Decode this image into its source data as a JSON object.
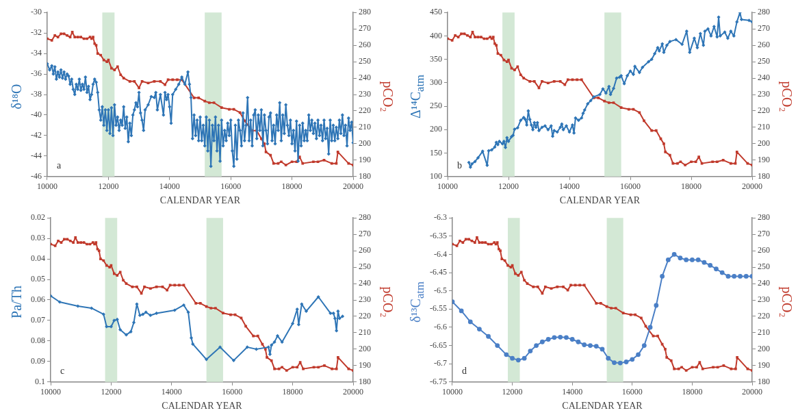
{
  "chart_data": [
    {
      "type": "line",
      "xlabel": "CALENDAR YEAR",
      "ylabel": "δ¹⁸O",
      "y2label": "pCO₂",
      "xlim": [
        10000,
        20000
      ],
      "xticks": [
        10000,
        12000,
        14000,
        16000,
        18000,
        20000
      ],
      "ylim": [
        -46,
        -30
      ],
      "yticks": [
        -46,
        -44,
        -42,
        -40,
        -38,
        -36,
        -34,
        -32,
        -30
      ],
      "y2lim": [
        180,
        280
      ],
      "y2ticks": [
        180,
        190,
        200,
        210,
        220,
        230,
        240,
        250,
        260,
        270,
        280
      ],
      "grid": false,
      "legend": false,
      "annotations": [
        "a"
      ],
      "bands": [
        {
          "axis": "x",
          "from": 11800,
          "to": 12200,
          "color": "#d3e8d5"
        },
        {
          "axis": "x",
          "from": 15150,
          "to": 15700,
          "color": "#d3e8d5"
        }
      ],
      "series": [
        {
          "type": "line",
          "color": "#2e75b6",
          "marker": "diamond",
          "x": [
            10000,
            10080,
            10150,
            10200,
            10250,
            10300,
            10350,
            10400,
            10450,
            10500,
            10550,
            10600,
            10650,
            10700,
            10750,
            10800,
            10850,
            10900,
            10950,
            11000,
            11050,
            11100,
            11150,
            11200,
            11250,
            11300,
            11350,
            11400,
            11450,
            11500,
            11550,
            11600,
            11650,
            11700,
            11750,
            11800,
            11850,
            11900,
            11950,
            12000,
            12050,
            12100,
            12150,
            12200,
            12250,
            12300,
            12350,
            12400,
            12450,
            12500,
            12550,
            12600,
            12650,
            12700,
            12750,
            12800,
            12850,
            12900,
            12950,
            13000,
            13050,
            13100,
            13150,
            13200,
            13300,
            13400,
            13500,
            13550,
            13600,
            13700,
            13800,
            13850,
            13900,
            13950,
            14000,
            14050,
            14100,
            14200,
            14300,
            14400,
            14500,
            14600,
            14650,
            14700,
            14750,
            14800,
            14850,
            14900,
            14950,
            15000,
            15050,
            15100,
            15150,
            15200,
            15250,
            15300,
            15350,
            15400,
            15450,
            15500,
            15550,
            15600,
            15650,
            15700,
            15750,
            15800,
            15850,
            15900,
            15950,
            16000,
            16050,
            16100,
            16150,
            16200,
            16250,
            16300,
            16350,
            16400,
            16450,
            16500,
            16550,
            16600,
            16650,
            16700,
            16750,
            16800,
            16850,
            16900,
            16950,
            17000,
            17050,
            17100,
            17150,
            17200,
            17250,
            17300,
            17350,
            17400,
            17450,
            17500,
            17550,
            17600,
            17650,
            17700,
            17750,
            17800,
            17850,
            17900,
            17950,
            18000,
            18050,
            18100,
            18150,
            18200,
            18250,
            18300,
            18350,
            18400,
            18450,
            18500,
            18550,
            18600,
            18650,
            18700,
            18750,
            18800,
            18850,
            18900,
            18950,
            19000,
            19050,
            19100,
            19150,
            19200,
            19250,
            19300,
            19350,
            19400,
            19450,
            19500,
            19550,
            19600,
            19650,
            19700,
            19750,
            19800,
            19850,
            19900,
            19950,
            20000
          ],
          "values": [
            -35,
            -35.6,
            -35.2,
            -36,
            -35.3,
            -36.5,
            -35.8,
            -36.3,
            -35.6,
            -36.4,
            -35.8,
            -36.5,
            -36,
            -36.2,
            -37,
            -36.5,
            -37.5,
            -38,
            -37,
            -37.5,
            -36.5,
            -37.6,
            -37,
            -37.5,
            -36.3,
            -37.8,
            -37.2,
            -38.5,
            -38,
            -37,
            -36.5,
            -36.8,
            -37.8,
            -39.5,
            -40.5,
            -39.2,
            -41,
            -39.5,
            -41.5,
            -39.5,
            -41.8,
            -39.3,
            -42,
            -39,
            -41,
            -40.2,
            -41.5,
            -40.5,
            -41,
            -39.2,
            -41.3,
            -40.2,
            -42.6,
            -40.8,
            -42,
            -40,
            -39.5,
            -38.8,
            -39.2,
            -37.8,
            -39.8,
            -40.5,
            -41.5,
            -39.5,
            -39,
            -38.2,
            -38.3,
            -37.8,
            -39.5,
            -38,
            -40,
            -37.8,
            -38.5,
            -38,
            -39.2,
            -40.8,
            -38,
            -37.5,
            -37,
            -36.3,
            -37,
            -35.8,
            -37,
            -38.3,
            -42.3,
            -40,
            -42,
            -40.5,
            -42.5,
            -40.2,
            -42.5,
            -41,
            -43,
            -40.2,
            -43.5,
            -40.5,
            -45,
            -41,
            -42.5,
            -40.2,
            -43.5,
            -41,
            -44.5,
            -40.5,
            -43,
            -41.5,
            -42.5,
            -40.8,
            -42,
            -40.5,
            -43.5,
            -45,
            -41,
            -44.3,
            -40.5,
            -41.5,
            -43,
            -39.8,
            -42.5,
            -41,
            -38.3,
            -42.5,
            -40.5,
            -43,
            -40,
            -39.5,
            -42.3,
            -40,
            -41.5,
            -39.5,
            -43,
            -40,
            -41.5,
            -42.8,
            -40.2,
            -39.8,
            -42.5,
            -41,
            -42.8,
            -40,
            -41.5,
            -38.8,
            -42.5,
            -40,
            -41.8,
            -39,
            -41,
            -42,
            -40.5,
            -42.8,
            -41.5,
            -43.5,
            -40.6,
            -44.5,
            -41,
            -43,
            -40.8,
            -42.5,
            -41.5,
            -42.5,
            -40,
            -41.5,
            -40.5,
            -41.8,
            -40.8,
            -42.3,
            -40.5,
            -42,
            -41,
            -42.5,
            -40.5,
            -42.3,
            -41.3,
            -43.8,
            -40.5,
            -42.5,
            -41,
            -42.5,
            -41.2,
            -42.3,
            -40.5,
            -41.8,
            -40,
            -42,
            -41,
            -43,
            -40.3,
            -41.5,
            -40.7,
            -42.7
          ]
        },
        {
          "type": "line",
          "color": "#c0392b",
          "marker": "square",
          "axis": "y2",
          "x": [
            10000,
            10150,
            10250,
            10350,
            10450,
            10550,
            10650,
            10750,
            10820,
            10900,
            11000,
            11100,
            11200,
            11300,
            11400,
            11450,
            11500,
            11550,
            11600,
            11650,
            11750,
            11850,
            11950,
            12000,
            12100,
            12200,
            12300,
            12400,
            12500,
            12700,
            12850,
            13000,
            13100,
            13300,
            13500,
            13700,
            13850,
            13950,
            14100,
            14250,
            14400,
            14800,
            14950,
            15150,
            15300,
            15450,
            15700,
            15950,
            16100,
            16300,
            16450,
            16700,
            16850,
            17000,
            17100,
            17150,
            17300,
            17400,
            17550,
            17650,
            17800,
            18000,
            18150,
            18250,
            18350,
            18700,
            18850,
            19050,
            19300,
            19450,
            19500,
            19850,
            20000
          ],
          "values": [
            264,
            263,
            266,
            265,
            267,
            267,
            266,
            265,
            268,
            265,
            265,
            265,
            264,
            264,
            265,
            264,
            265,
            261,
            260,
            255,
            254,
            251,
            250,
            251,
            246,
            245,
            247,
            242,
            240,
            238,
            238,
            234,
            238,
            237,
            238,
            238,
            236,
            239,
            239,
            239,
            239,
            228,
            228,
            226,
            225,
            225,
            222,
            221,
            221,
            219,
            214,
            208,
            208,
            203,
            200,
            195,
            193,
            188,
            188,
            189,
            187,
            189,
            189,
            192,
            188,
            189,
            189,
            190,
            188,
            188,
            195,
            188,
            187
          ]
        }
      ]
    },
    {
      "type": "line",
      "xlabel": "CALENDAR YEAR",
      "ylabel": "Δ¹⁴C$_{atm}$",
      "y2label": "pCO₂",
      "xlim": [
        10000,
        20000
      ],
      "xticks": [
        10000,
        12000,
        14000,
        16000,
        18000,
        20000
      ],
      "ylim": [
        100,
        450
      ],
      "yticks": [
        100,
        150,
        200,
        250,
        300,
        350,
        400,
        450
      ],
      "y2lim": [
        180,
        280
      ],
      "y2ticks": [
        180,
        190,
        200,
        210,
        220,
        230,
        240,
        250,
        260,
        270,
        280
      ],
      "grid": false,
      "legend": false,
      "annotations": [
        "b"
      ],
      "bands": [
        {
          "axis": "x",
          "from": 11800,
          "to": 12200,
          "color": "#d3e8d5"
        },
        {
          "axis": "x",
          "from": 15150,
          "to": 15700,
          "color": "#d3e8d5"
        }
      ],
      "series": [
        {
          "type": "line",
          "color": "#2e75b6",
          "marker": "diamond",
          "x": [
            10700,
            10750,
            10800,
            10900,
            11000,
            11150,
            11300,
            11350,
            11450,
            11550,
            11600,
            11650,
            11700,
            11800,
            11850,
            11900,
            11950,
            12000,
            12100,
            12150,
            12200,
            12300,
            12400,
            12500,
            12550,
            12600,
            12650,
            12700,
            12750,
            12800,
            12850,
            12900,
            12950,
            13000,
            13100,
            13200,
            13300,
            13400,
            13450,
            13500,
            13600,
            13700,
            13750,
            13800,
            13900,
            14000,
            14100,
            14150,
            14200,
            14300,
            14400,
            14450,
            14500,
            14600,
            14700,
            14800,
            15000,
            15100,
            15200,
            15300,
            15350,
            15450,
            15550,
            15650,
            15700,
            15800,
            15900,
            16000,
            16100,
            16150,
            16300,
            16400,
            16600,
            16700,
            16800,
            16900,
            16950,
            17050,
            17100,
            17200,
            17300,
            17500,
            17700,
            17850,
            17950,
            18100,
            18200,
            18300,
            18400,
            18450,
            18550,
            18650,
            18750,
            18850,
            18900,
            18950,
            19100,
            19200,
            19300,
            19400,
            19500,
            19600,
            19650,
            19900,
            20000
          ],
          "values": [
            130,
            120,
            127,
            132,
            140,
            154,
            124,
            155,
            157,
            163,
            173,
            168,
            175,
            170,
            175,
            162,
            183,
            175,
            185,
            188,
            201,
            204,
            220,
            226,
            222,
            210,
            240,
            222,
            210,
            200,
            215,
            205,
            215,
            198,
            205,
            208,
            200,
            208,
            186,
            198,
            195,
            205,
            212,
            200,
            208,
            195,
            210,
            193,
            225,
            220,
            225,
            235,
            242,
            255,
            262,
            270,
            275,
            287,
            278,
            292,
            275,
            288,
            310,
            312,
            315,
            298,
            315,
            325,
            318,
            335,
            322,
            333,
            345,
            350,
            362,
            375,
            368,
            383,
            365,
            380,
            388,
            392,
            382,
            410,
            365,
            395,
            375,
            405,
            380,
            410,
            415,
            400,
            420,
            398,
            440,
            400,
            408,
            395,
            410,
            400,
            430,
            450,
            435,
            433,
            430
          ]
        },
        {
          "type": "line",
          "color": "#c0392b",
          "marker": "square",
          "axis": "y2",
          "x": [
            10000,
            10150,
            10250,
            10350,
            10450,
            10550,
            10650,
            10750,
            10820,
            10900,
            11000,
            11100,
            11200,
            11300,
            11400,
            11450,
            11500,
            11550,
            11600,
            11650,
            11750,
            11850,
            11950,
            12000,
            12100,
            12200,
            12300,
            12400,
            12500,
            12700,
            12850,
            13000,
            13100,
            13300,
            13500,
            13700,
            13850,
            13950,
            14100,
            14250,
            14400,
            14800,
            14950,
            15150,
            15300,
            15450,
            15700,
            15950,
            16100,
            16300,
            16450,
            16700,
            16850,
            17000,
            17100,
            17150,
            17300,
            17400,
            17550,
            17650,
            17800,
            18000,
            18150,
            18250,
            18350,
            18700,
            18850,
            19050,
            19300,
            19450,
            19500,
            19850,
            20000
          ],
          "values": [
            264,
            263,
            266,
            265,
            267,
            267,
            266,
            265,
            268,
            265,
            265,
            265,
            264,
            264,
            265,
            264,
            265,
            261,
            260,
            255,
            254,
            251,
            250,
            251,
            246,
            245,
            247,
            242,
            240,
            238,
            238,
            234,
            238,
            237,
            238,
            238,
            236,
            239,
            239,
            239,
            239,
            228,
            228,
            226,
            225,
            225,
            222,
            221,
            221,
            219,
            214,
            208,
            208,
            203,
            200,
            195,
            193,
            188,
            188,
            189,
            187,
            189,
            189,
            192,
            188,
            189,
            189,
            190,
            188,
            188,
            195,
            188,
            187
          ]
        }
      ]
    },
    {
      "type": "line",
      "xlabel": "CALENDAR YEAR",
      "ylabel": "Pa/Th",
      "y2label": "pCO₂",
      "xlim": [
        10000,
        20000
      ],
      "xticks": [
        10000,
        12000,
        14000,
        16000,
        18000,
        20000
      ],
      "ylim": [
        0.1,
        0.02
      ],
      "yticks": [
        0.02,
        0.03,
        0.04,
        0.05,
        0.06,
        0.07,
        0.08,
        0.09,
        0.1
      ],
      "y2lim": [
        180,
        280
      ],
      "y2ticks": [
        180,
        190,
        200,
        210,
        220,
        230,
        240,
        250,
        260,
        270,
        280
      ],
      "grid": false,
      "legend": false,
      "annotations": [
        "c"
      ],
      "bands": [
        {
          "axis": "x",
          "from": 11800,
          "to": 12200,
          "color": "#d3e8d5"
        },
        {
          "axis": "x",
          "from": 15150,
          "to": 15700,
          "color": "#d3e8d5"
        }
      ],
      "series": [
        {
          "type": "line",
          "color": "#2e75b6",
          "marker": "diamond",
          "x": [
            10000,
            10300,
            10900,
            11350,
            11750,
            11850,
            12000,
            12100,
            12200,
            12300,
            12500,
            12650,
            12750,
            12850,
            12950,
            13050,
            13150,
            13300,
            13500,
            14100,
            14400,
            14550,
            14650,
            14700,
            15150,
            15600,
            16050,
            16500,
            16800,
            17200,
            17250,
            17300,
            17400,
            17500,
            17650,
            18000,
            18150,
            18200,
            18300,
            18450,
            18850,
            19250,
            19350,
            19400,
            19450,
            19500,
            19550,
            19650
          ],
          "values": [
            0.058,
            0.061,
            0.063,
            0.064,
            0.067,
            0.073,
            0.073,
            0.07,
            0.0695,
            0.0745,
            0.077,
            0.0755,
            0.071,
            0.062,
            0.0675,
            0.067,
            0.066,
            0.0675,
            0.0665,
            0.065,
            0.0625,
            0.066,
            0.0785,
            0.0815,
            0.089,
            0.083,
            0.0895,
            0.083,
            0.084,
            0.083,
            0.0865,
            0.082,
            0.0805,
            0.0775,
            0.0805,
            0.0715,
            0.0645,
            0.072,
            0.062,
            0.0655,
            0.0585,
            0.0665,
            0.0665,
            0.069,
            0.075,
            0.0655,
            0.069,
            0.068
          ]
        },
        {
          "type": "line",
          "color": "#c0392b",
          "marker": "square",
          "axis": "y2",
          "x": [
            10000,
            10150,
            10250,
            10350,
            10450,
            10550,
            10650,
            10750,
            10820,
            10900,
            11000,
            11100,
            11200,
            11300,
            11400,
            11450,
            11500,
            11550,
            11600,
            11650,
            11750,
            11850,
            11950,
            12000,
            12100,
            12200,
            12300,
            12400,
            12500,
            12700,
            12850,
            13000,
            13100,
            13300,
            13500,
            13700,
            13850,
            13950,
            14100,
            14250,
            14400,
            14800,
            14950,
            15150,
            15300,
            15450,
            15700,
            15950,
            16100,
            16300,
            16450,
            16700,
            16850,
            17000,
            17100,
            17150,
            17300,
            17400,
            17550,
            17650,
            17800,
            18000,
            18150,
            18250,
            18350,
            18700,
            18850,
            19050,
            19300,
            19450,
            19500,
            19850,
            20000
          ],
          "values": [
            264,
            263,
            266,
            265,
            267,
            267,
            266,
            265,
            268,
            265,
            265,
            265,
            264,
            264,
            265,
            264,
            265,
            261,
            260,
            255,
            254,
            251,
            250,
            251,
            246,
            245,
            247,
            242,
            240,
            238,
            238,
            234,
            238,
            237,
            238,
            238,
            236,
            239,
            239,
            239,
            239,
            228,
            228,
            226,
            225,
            225,
            222,
            221,
            221,
            219,
            214,
            208,
            208,
            203,
            200,
            195,
            193,
            188,
            188,
            189,
            187,
            189,
            189,
            192,
            188,
            189,
            189,
            190,
            188,
            188,
            195,
            188,
            187
          ]
        }
      ]
    },
    {
      "type": "line",
      "xlabel": "CALENDAR YEAR",
      "ylabel": "δ¹³C$_{atm}$",
      "y2label": "pCO₂",
      "xlim": [
        10000,
        20000
      ],
      "xticks": [
        10000,
        12000,
        14000,
        16000,
        18000,
        20000
      ],
      "ylim": [
        -6.75,
        -6.3
      ],
      "yticks": [
        -6.75,
        -6.7,
        -6.65,
        -6.6,
        -6.55,
        -6.5,
        -6.45,
        -6.4,
        -6.35,
        -6.3
      ],
      "y2lim": [
        180,
        280
      ],
      "y2ticks": [
        180,
        190,
        200,
        210,
        220,
        230,
        240,
        250,
        260,
        270,
        280
      ],
      "grid": false,
      "legend": false,
      "annotations": [
        "d"
      ],
      "bands": [
        {
          "axis": "x",
          "from": 11850,
          "to": 12250,
          "color": "#d3e8d5"
        },
        {
          "axis": "x",
          "from": 15150,
          "to": 15700,
          "color": "#d3e8d5"
        }
      ],
      "series": [
        {
          "type": "line",
          "color": "#4a7fc6",
          "marker": "circle",
          "x": [
            10000,
            10300,
            10600,
            10900,
            11200,
            11500,
            11800,
            12000,
            12200,
            12400,
            12600,
            12800,
            13000,
            13200,
            13400,
            13600,
            13800,
            14000,
            14200,
            14400,
            14600,
            14800,
            15000,
            15200,
            15400,
            15600,
            15800,
            16000,
            16200,
            16400,
            16600,
            16800,
            17000,
            17200,
            17400,
            17600,
            17800,
            18000,
            18200,
            18400,
            18600,
            18800,
            19000,
            19200,
            19400,
            19600,
            19800,
            20000
          ],
          "values": [
            -6.53,
            -6.555,
            -6.585,
            -6.605,
            -6.625,
            -6.65,
            -6.675,
            -6.685,
            -6.69,
            -6.685,
            -6.665,
            -6.65,
            -6.64,
            -6.633,
            -6.628,
            -6.627,
            -6.628,
            -6.633,
            -6.64,
            -6.648,
            -6.65,
            -6.652,
            -6.66,
            -6.685,
            -6.697,
            -6.698,
            -6.695,
            -6.688,
            -6.675,
            -6.65,
            -6.6,
            -6.54,
            -6.46,
            -6.415,
            -6.4,
            -6.41,
            -6.415,
            -6.415,
            -6.415,
            -6.422,
            -6.43,
            -6.44,
            -6.45,
            -6.46,
            -6.46,
            -6.46,
            -6.46,
            -6.46
          ]
        },
        {
          "type": "line",
          "color": "#c0392b",
          "marker": "square",
          "axis": "y2",
          "x": [
            10000,
            10150,
            10250,
            10350,
            10450,
            10550,
            10650,
            10750,
            10820,
            10900,
            11000,
            11100,
            11200,
            11300,
            11400,
            11450,
            11500,
            11550,
            11600,
            11650,
            11750,
            11850,
            11950,
            12000,
            12100,
            12200,
            12300,
            12400,
            12500,
            12700,
            12850,
            13000,
            13100,
            13300,
            13500,
            13700,
            13850,
            13950,
            14100,
            14250,
            14400,
            14800,
            14950,
            15150,
            15300,
            15450,
            15700,
            15950,
            16100,
            16300,
            16450,
            16700,
            16850,
            17000,
            17100,
            17150,
            17300,
            17400,
            17550,
            17650,
            17800,
            18000,
            18150,
            18250,
            18350,
            18700,
            18850,
            19050,
            19300,
            19450,
            19500,
            19850,
            20000
          ],
          "values": [
            264,
            263,
            266,
            265,
            267,
            267,
            266,
            265,
            268,
            265,
            265,
            265,
            264,
            264,
            265,
            264,
            265,
            261,
            260,
            255,
            254,
            251,
            250,
            251,
            246,
            245,
            247,
            242,
            240,
            238,
            238,
            234,
            238,
            237,
            238,
            238,
            236,
            239,
            239,
            239,
            239,
            228,
            228,
            226,
            225,
            225,
            222,
            221,
            221,
            219,
            214,
            208,
            208,
            203,
            200,
            195,
            193,
            188,
            188,
            189,
            187,
            189,
            189,
            192,
            188,
            189,
            189,
            190,
            188,
            188,
            195,
            188,
            187
          ]
        }
      ]
    }
  ]
}
